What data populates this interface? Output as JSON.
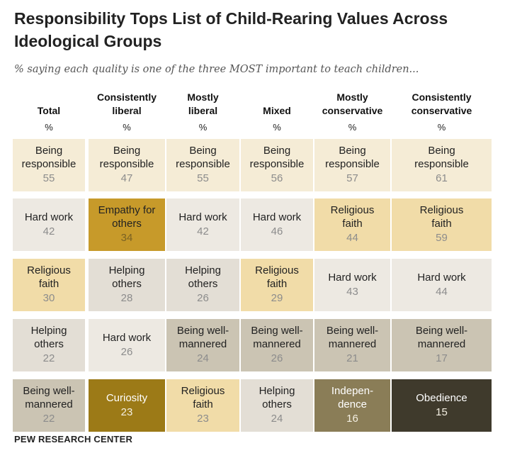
{
  "title": "Responsibility Tops List of Child-Rearing Values Across Ideological Groups",
  "subtitle": "% saying each quality is one of the three MOST important to teach children...",
  "source": "PEW RESEARCH CENTER",
  "chart_data": {
    "type": "table",
    "unit_label": "%",
    "columns": [
      "Total",
      "Consistently liberal",
      "Mostly liberal",
      "Mixed",
      "Mostly conservative",
      "Consistently conservative"
    ],
    "rows": [
      [
        {
          "label": "Being responsible",
          "value": 55,
          "color": "#f5ecd6"
        },
        {
          "label": "Being responsible",
          "value": 47,
          "color": "#f5ecd6"
        },
        {
          "label": "Being responsible",
          "value": 55,
          "color": "#f5ecd6"
        },
        {
          "label": "Being responsible",
          "value": 56,
          "color": "#f5ecd6"
        },
        {
          "label": "Being responsible",
          "value": 57,
          "color": "#f5ecd6"
        },
        {
          "label": "Being responsible",
          "value": 61,
          "color": "#f5ecd6"
        }
      ],
      [
        {
          "label": "Hard work",
          "value": 42,
          "color": "#ede9e2"
        },
        {
          "label": "Empathy for others",
          "value": 34,
          "color": "#c79a2a"
        },
        {
          "label": "Hard work",
          "value": 42,
          "color": "#ede9e2"
        },
        {
          "label": "Hard work",
          "value": 46,
          "color": "#ede9e2"
        },
        {
          "label": "Religious faith",
          "value": 44,
          "color": "#f1dca8"
        },
        {
          "label": "Religious faith",
          "value": 59,
          "color": "#f1dca8"
        }
      ],
      [
        {
          "label": "Religious faith",
          "value": 30,
          "color": "#f1dca8"
        },
        {
          "label": "Helping others",
          "value": 28,
          "color": "#e3ded5"
        },
        {
          "label": "Helping others",
          "value": 26,
          "color": "#e3ded5"
        },
        {
          "label": "Religious faith",
          "value": 29,
          "color": "#f1dca8"
        },
        {
          "label": "Hard work",
          "value": 43,
          "color": "#ede9e2"
        },
        {
          "label": "Hard work",
          "value": 44,
          "color": "#ede9e2"
        }
      ],
      [
        {
          "label": "Helping others",
          "value": 22,
          "color": "#e3ded5"
        },
        {
          "label": "Hard work",
          "value": 26,
          "color": "#ede9e2"
        },
        {
          "label": "Being well-mannered",
          "value": 24,
          "color": "#cbc4b3"
        },
        {
          "label": "Being well-mannered",
          "value": 26,
          "color": "#cbc4b3"
        },
        {
          "label": "Being well-mannered",
          "value": 21,
          "color": "#cbc4b3"
        },
        {
          "label": "Being well-mannered",
          "value": 17,
          "color": "#cbc4b3"
        }
      ],
      [
        {
          "label": "Being well-mannered",
          "value": 22,
          "color": "#cbc4b3"
        },
        {
          "label": "Curiosity",
          "value": 23,
          "color": "#9c7a17"
        },
        {
          "label": "Religious faith",
          "value": 23,
          "color": "#f1dca8"
        },
        {
          "label": "Helping others",
          "value": 24,
          "color": "#e3ded5"
        },
        {
          "label": "Indepen-dence",
          "value": 16,
          "color": "#8a7d57"
        },
        {
          "label": "Obedience",
          "value": 15,
          "color": "#3f3a2c"
        }
      ]
    ]
  }
}
